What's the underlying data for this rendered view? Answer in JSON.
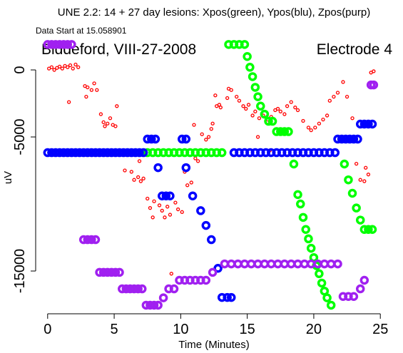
{
  "chart_data": {
    "type": "scatter",
    "title": "UNE 2.2: 14 + 27 day lesions: Xpos(green), Ypos(blu), Zpos(purp)",
    "subtitle": "Data Start at 15.058901",
    "annotations": [
      "Biddeford, VIII-27-2008",
      "Electrode 4"
    ],
    "x_label": "Time (Minutes)",
    "y_label": "uV",
    "xlim": [
      -0.9,
      25.9
    ],
    "ylim": [
      -18190,
      2130
    ],
    "xticks": [
      0,
      5,
      10,
      15,
      20,
      25
    ],
    "yticks": [
      0,
      -5000,
      -15000
    ],
    "series": [
      {
        "color": "#ff0000",
        "x": [
          0.1,
          0.3,
          0.5,
          0.7,
          0.9,
          1.1,
          1.3,
          1.5,
          1.7,
          1.9,
          2.1,
          2.3,
          1.6,
          2.8,
          3.0,
          3.3,
          3.5,
          3.7,
          2.9,
          4.0,
          4.2,
          4.3,
          4.5,
          4.7,
          4.9,
          5.2,
          5.1,
          5.6,
          5.8,
          6.0,
          6.2,
          5.8,
          6.3,
          6.5,
          6.8,
          7.0,
          7.2,
          6.9,
          7.5,
          7.7,
          7.9,
          8.0,
          8.4,
          8.6,
          8.8,
          9.0,
          9.2,
          9.6,
          9.8,
          10.1,
          10.5,
          10.3,
          10.8,
          9.3,
          11.1,
          11.3,
          11.0,
          11.6,
          11.9,
          12.1,
          12.3,
          12.4,
          12.7,
          12.9,
          13.0,
          12.6,
          13.5,
          13.6,
          13.8,
          14.2,
          14.4,
          14.7,
          14.9,
          15.1,
          15.4,
          15.6,
          15.9,
          16.2,
          16.5,
          16.8,
          17.1,
          17.3,
          17.5,
          17.8,
          18.0,
          18.3,
          18.6,
          18.8,
          19.2,
          19.6,
          19.8,
          20.1,
          20.4,
          20.7,
          21.0,
          21.2,
          21.5,
          21.8,
          22.2,
          22.5,
          22.9,
          23.2,
          23.5,
          23.8,
          24.1,
          24.3,
          24.5,
          15.8,
          16.7,
          23.9
        ],
        "values": [
          100,
          200,
          0,
          150,
          250,
          100,
          300,
          200,
          350,
          100,
          400,
          200,
          -2400,
          -1200,
          -1300,
          -1500,
          -1000,
          -1500,
          -2000,
          -3300,
          -3900,
          -4200,
          -4000,
          -3600,
          -4100,
          -2700,
          -4200,
          -6000,
          -6300,
          -6100,
          -6200,
          -7500,
          -7600,
          -8200,
          -8000,
          -8300,
          -8100,
          -6800,
          -9600,
          -10300,
          -11000,
          -9800,
          -10100,
          -10500,
          -11000,
          -10200,
          -10800,
          -9900,
          -10400,
          -10600,
          -8600,
          -7600,
          -8400,
          -15200,
          -6600,
          -6800,
          -4100,
          -4800,
          -5200,
          -5000,
          -4400,
          -4000,
          -2700,
          -2600,
          -2800,
          -1900,
          -2100,
          -1400,
          -1500,
          -2000,
          -2300,
          -2700,
          -2900,
          -2600,
          -3400,
          -3100,
          -3600,
          -3400,
          -3900,
          -3500,
          -3000,
          -2900,
          -3100,
          -3300,
          -2700,
          -2400,
          -2800,
          -3000,
          -3800,
          -4300,
          -4500,
          -4300,
          -4000,
          -3700,
          -3400,
          -2300,
          -2000,
          -1700,
          -900,
          -2000,
          -3600,
          -7000,
          -8200,
          -8300,
          -7800,
          -200,
          -100,
          -5000,
          -6000,
          -7300
        ]
      },
      {
        "color": "#00ff00",
        "x": [
          7.5,
          7.9,
          8.3,
          8.7,
          9.1,
          9.5,
          9.9,
          10.3,
          10.7,
          11.1,
          11.5,
          11.9,
          12.3,
          12.7,
          13.1,
          13.6,
          14.0,
          14.4,
          14.8,
          15.0,
          15.2,
          15.4,
          15.6,
          15.8,
          16.0,
          16.3,
          16.6,
          16.9,
          17.2,
          17.5,
          17.8,
          18.1,
          18.5,
          18.8,
          19.0,
          19.2,
          19.4,
          19.6,
          19.8,
          20.0,
          20.2,
          20.4,
          20.6,
          20.8,
          21.0,
          21.3,
          22.3,
          22.6,
          22.9,
          23.2,
          23.5,
          23.8,
          24.1,
          24.4
        ],
        "values": [
          -6170,
          -6170,
          -6170,
          -6170,
          -6170,
          -6170,
          -6170,
          -6170,
          -6170,
          -6170,
          -6170,
          -6170,
          -6170,
          -6170,
          -6170,
          1900,
          1900,
          1900,
          1900,
          1000,
          200,
          -500,
          -1300,
          -2000,
          -2700,
          -3300,
          -3830,
          -3830,
          -4600,
          -4600,
          -4600,
          -4600,
          -7020,
          -9300,
          -10000,
          -11000,
          -11900,
          -12600,
          -13300,
          -14000,
          -14600,
          -15200,
          -15900,
          -16500,
          -17000,
          -17550,
          -7020,
          -8200,
          -9200,
          -10300,
          -11200,
          -11900,
          -11900,
          -11900
        ]
      },
      {
        "color": "#0000ff",
        "x": [
          0,
          0.3,
          0.6,
          0.9,
          1.2,
          1.5,
          1.8,
          2.1,
          2.4,
          2.7,
          3.0,
          3.3,
          3.6,
          3.9,
          4.2,
          4.5,
          4.8,
          5.1,
          5.4,
          5.7,
          6.0,
          6.3,
          6.6,
          6.9,
          7.2,
          7.5,
          7.8,
          8.1,
          8.3,
          8.6,
          8.9,
          9.2,
          10.1,
          10.4,
          10.4,
          10.9,
          11.5,
          11.9,
          12.3,
          12.8,
          13.1,
          13.5,
          13.8,
          14.0,
          14.4,
          14.8,
          15.2,
          15.6,
          16.0,
          16.4,
          16.8,
          17.2,
          17.6,
          18.0,
          18.4,
          18.8,
          19.2,
          19.6,
          20.0,
          20.4,
          20.8,
          21.2,
          21.6,
          21.8,
          22.1,
          22.4,
          22.7,
          23.0,
          23.3,
          23.5,
          23.8,
          24.1,
          24.4
        ],
        "values": [
          -6170,
          -6170,
          -6170,
          -6170,
          -6170,
          -6170,
          -6170,
          -6170,
          -6170,
          -6170,
          -6170,
          -6170,
          -6170,
          -6170,
          -6170,
          -6170,
          -6170,
          -6170,
          -6170,
          -6170,
          -6170,
          -6170,
          -6170,
          -6170,
          -6170,
          -5160,
          -5160,
          -5160,
          -7290,
          -9400,
          -9400,
          -9400,
          -5160,
          -5160,
          -7290,
          -9400,
          -10500,
          -11600,
          -12660,
          -14800,
          -16970,
          -16970,
          -16970,
          -6170,
          -6170,
          -6170,
          -6170,
          -6170,
          -6170,
          -6170,
          -6170,
          -6170,
          -6170,
          -6170,
          -6170,
          -6170,
          -6170,
          -6170,
          -6170,
          -6170,
          -6170,
          -6170,
          -6170,
          -5160,
          -5160,
          -5160,
          -5160,
          -5160,
          -5160,
          -4040,
          -4040,
          -4040,
          -4040
        ]
      },
      {
        "color": "#a020f0",
        "x": [
          0,
          0.3,
          0.6,
          0.9,
          1.2,
          1.5,
          1.8,
          2.7,
          3.0,
          3.3,
          3.6,
          3.9,
          4.2,
          4.5,
          4.8,
          5.1,
          5.4,
          5.6,
          5.9,
          6.2,
          6.5,
          6.8,
          7.1,
          7.4,
          7.7,
          8.0,
          8.3,
          8.7,
          9.1,
          9.5,
          9.9,
          10.3,
          10.7,
          11.1,
          11.5,
          11.9,
          12.4,
          13.3,
          13.8,
          14.3,
          14.8,
          15.3,
          15.8,
          16.3,
          16.8,
          17.3,
          17.8,
          18.3,
          18.8,
          19.3,
          19.8,
          20.3,
          20.8,
          21.3,
          21.8,
          22.2,
          22.6,
          23.0,
          23.5,
          23.8,
          24.3,
          24.5
        ],
        "values": [
          1900,
          1900,
          1900,
          1900,
          1900,
          1900,
          1900,
          -12660,
          -12660,
          -12660,
          -12660,
          -15100,
          -15100,
          -15100,
          -15100,
          -15100,
          -15100,
          -16330,
          -16330,
          -16330,
          -16330,
          -16330,
          -16330,
          -17550,
          -17550,
          -17550,
          -17550,
          -17000,
          -16330,
          -16330,
          -15690,
          -15690,
          -15690,
          -15690,
          -15690,
          -15690,
          -15100,
          -14470,
          -14470,
          -14470,
          -14470,
          -14470,
          -14470,
          -14470,
          -14470,
          -14470,
          -14470,
          -14470,
          -14470,
          -14470,
          -14470,
          -14470,
          -14470,
          -14470,
          -14470,
          -16900,
          -16900,
          -16900,
          -16330,
          -15690,
          -1120,
          -1120
        ]
      }
    ]
  }
}
